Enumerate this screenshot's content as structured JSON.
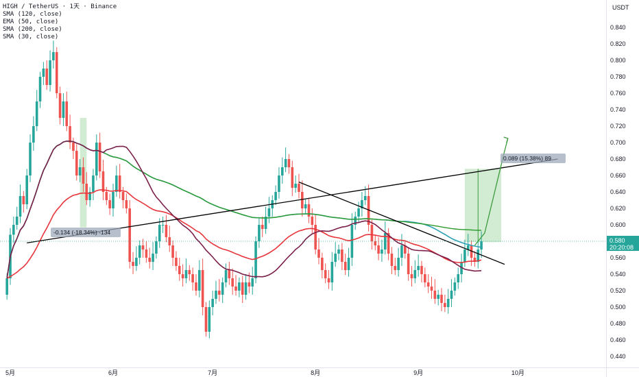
{
  "header": {
    "symbol_line": "HIGH / TetherUS · 1天 · Binance",
    "indicators": [
      "SMA (120, close)",
      "EMA (50, close)",
      "SMA (200, close)",
      "SMA (30, close)"
    ]
  },
  "price_axis": {
    "unit_label": "USDT"
  },
  "price_tag": {
    "value": "0.580",
    "countdown": "20:20:08"
  },
  "measure_down": {
    "label": "-0.134 (-18.34%) -134"
  },
  "measure_up": {
    "label": "0.089 (15.38%) 89"
  },
  "colors": {
    "up": "#26a69a",
    "down": "#ef5350",
    "sma120": "#2a9fb3",
    "ema50": "#e8343a",
    "sma200": "#2e9b2e",
    "sma30": "#7a1f4a",
    "trendline": "#000000",
    "projection": "#3a9a3a"
  },
  "chart_data": {
    "type": "candlestick",
    "ylim": [
      0.43,
      0.87
    ],
    "yticks": [
      0.44,
      0.46,
      0.48,
      0.5,
      0.52,
      0.54,
      0.56,
      0.58,
      0.6,
      0.62,
      0.64,
      0.66,
      0.68,
      0.7,
      0.72,
      0.74,
      0.76,
      0.78,
      0.8,
      0.82,
      0.84
    ],
    "ytick_labels": [
      "0.440",
      "0.460",
      "0.480",
      "0.500",
      "0.520",
      "0.540",
      "0.560",
      "0.580",
      "0.600",
      "0.620",
      "0.640",
      "0.660",
      "0.680",
      "0.700",
      "0.720",
      "0.740",
      "0.760",
      "0.780",
      "0.800",
      "0.820",
      "0.840"
    ],
    "xticks": [
      {
        "date": "2024-05-01",
        "label": "5月"
      },
      {
        "date": "2024-06-01",
        "label": "6月"
      },
      {
        "date": "2024-07-01",
        "label": "7月"
      },
      {
        "date": "2024-08-01",
        "label": "8月"
      },
      {
        "date": "2024-09-01",
        "label": "9月"
      },
      {
        "date": "2024-10-01",
        "label": "10月"
      }
    ],
    "first_date": "2024-04-30",
    "last_close": 0.58,
    "closes": [
      0.535,
      0.588,
      0.6,
      0.61,
      0.635,
      0.625,
      0.66,
      0.7,
      0.72,
      0.75,
      0.78,
      0.79,
      0.77,
      0.8,
      0.81,
      0.76,
      0.73,
      0.75,
      0.72,
      0.7,
      0.69,
      0.66,
      0.67,
      0.65,
      0.63,
      0.64,
      0.66,
      0.7,
      0.665,
      0.64,
      0.63,
      0.62,
      0.64,
      0.66,
      0.64,
      0.63,
      0.62,
      0.555,
      0.55,
      0.56,
      0.575,
      0.57,
      0.56,
      0.555,
      0.565,
      0.58,
      0.6,
      0.6,
      0.585,
      0.575,
      0.56,
      0.55,
      0.54,
      0.535,
      0.545,
      0.54,
      0.53,
      0.52,
      0.545,
      0.5,
      0.47,
      0.5,
      0.51,
      0.52,
      0.515,
      0.53,
      0.545,
      0.535,
      0.525,
      0.52,
      0.53,
      0.515,
      0.53,
      0.525,
      0.535,
      0.58,
      0.6,
      0.595,
      0.61,
      0.62,
      0.63,
      0.64,
      0.66,
      0.67,
      0.68,
      0.67,
      0.645,
      0.65,
      0.64,
      0.62,
      0.625,
      0.61,
      0.6,
      0.57,
      0.56,
      0.545,
      0.535,
      0.53,
      0.555,
      0.565,
      0.57,
      0.555,
      0.545,
      0.56,
      0.6,
      0.61,
      0.62,
      0.63,
      0.635,
      0.6,
      0.58,
      0.575,
      0.565,
      0.57,
      0.59,
      0.565,
      0.55,
      0.545,
      0.56,
      0.575,
      0.565,
      0.54,
      0.535,
      0.545,
      0.55,
      0.54,
      0.53,
      0.525,
      0.52,
      0.51,
      0.515,
      0.505,
      0.5,
      0.51,
      0.52,
      0.53,
      0.54,
      0.555,
      0.57,
      0.575,
      0.56,
      0.555,
      0.57,
      0.58
    ],
    "projection_path": [
      [
        "2024-09-18",
        0.575
      ],
      [
        "2024-09-21",
        0.59
      ],
      [
        "2024-09-24",
        0.64
      ],
      [
        "2024-09-27",
        0.69
      ],
      [
        "2024-09-28",
        0.705
      ]
    ],
    "trendlines": [
      {
        "from": [
          "2024-05-06",
          0.578
        ],
        "to": [
          "2024-10-13",
          0.68
        ]
      },
      {
        "from": [
          "2024-07-27",
          0.652
        ],
        "to": [
          "2024-09-27",
          0.552
        ]
      }
    ]
  }
}
